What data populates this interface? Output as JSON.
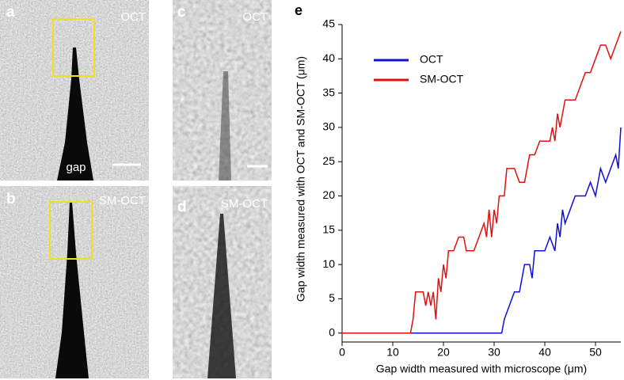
{
  "panels": {
    "a": {
      "label": "a",
      "modality": "OCT",
      "annotation": "gap"
    },
    "b": {
      "label": "b",
      "modality": "SM-OCT"
    },
    "c": {
      "label": "c",
      "modality": "OCT"
    },
    "d": {
      "label": "d",
      "modality": "SM-OCT"
    }
  },
  "chart_data": {
    "type": "line",
    "panel_label": "e",
    "xlabel": "Gap width measured with microscope (μm)",
    "ylabel": "Gap width measured with OCT and SM-OCT (μm)",
    "xlim": [
      0,
      55
    ],
    "xticks": [
      0,
      10,
      20,
      30,
      40,
      50
    ],
    "ylim": [
      -1.3,
      45
    ],
    "yticks": [
      0,
      5,
      10,
      15,
      20,
      25,
      30,
      35,
      40,
      45
    ],
    "legend": "upper left",
    "series": [
      {
        "name": "OCT",
        "color": "#1010d0",
        "x": [
          0,
          31,
          31.5,
          32,
          33,
          34,
          35,
          36,
          37,
          37.5,
          38,
          40,
          41,
          42,
          42.5,
          43,
          43.5,
          44,
          45,
          46,
          48,
          49,
          50,
          51,
          52,
          53,
          54,
          54.5,
          55
        ],
        "values": [
          0,
          0,
          0,
          2,
          4,
          6,
          6,
          10,
          10,
          8,
          12,
          12,
          14,
          12,
          16,
          14,
          18,
          16,
          18,
          20,
          20,
          22,
          20,
          24,
          22,
          24,
          26,
          24,
          30
        ]
      },
      {
        "name": "SM-OCT",
        "color": "#e01010",
        "x": [
          0,
          13.5,
          14,
          14.5,
          16,
          16.5,
          17,
          17.5,
          18,
          18.5,
          19,
          19.5,
          20,
          20.5,
          21,
          22,
          23,
          24,
          24.5,
          26,
          27,
          28,
          28.5,
          29,
          29.5,
          30,
          30.5,
          31,
          32,
          32.5,
          34,
          35,
          36,
          37,
          38,
          39,
          40,
          41,
          41.5,
          42,
          42.5,
          43,
          44,
          46,
          47,
          48,
          49,
          50,
          51,
          52,
          53,
          54,
          55
        ],
        "values": [
          0,
          0,
          2,
          6,
          6,
          4,
          6,
          4,
          6,
          2,
          8,
          6,
          10,
          8,
          12,
          12,
          14,
          14,
          12,
          12,
          14,
          16,
          14,
          18,
          14,
          18,
          16,
          20,
          20,
          24,
          24,
          22,
          22,
          26,
          26,
          28,
          28,
          28,
          30,
          28,
          32,
          30,
          34,
          34,
          36,
          38,
          38,
          40,
          42,
          42,
          40,
          42,
          44
        ]
      }
    ]
  }
}
